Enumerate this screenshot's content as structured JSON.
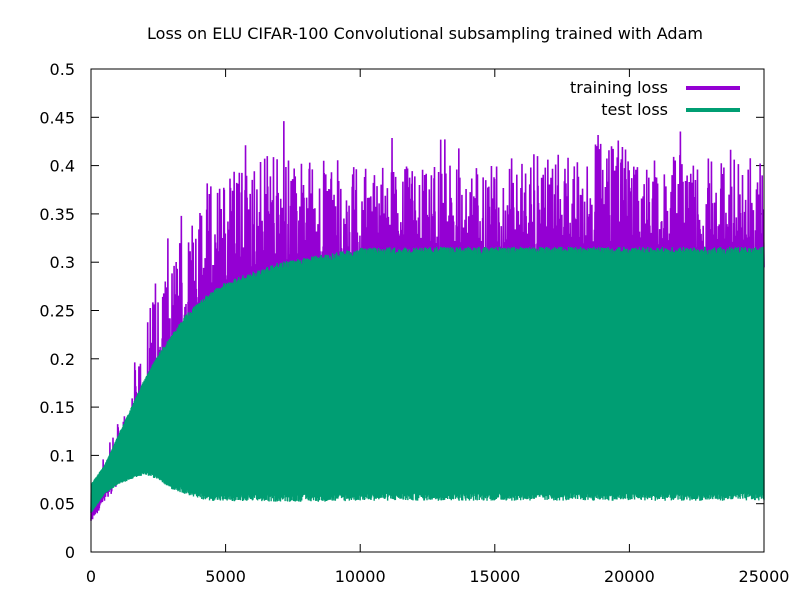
{
  "chart_data": {
    "type": "line",
    "title": "Loss on ELU CIFAR-100 Convolutional subsampling trained with Adam",
    "xlabel": "",
    "ylabel": "",
    "xlim": [
      0,
      25000
    ],
    "ylim": [
      0,
      0.5
    ],
    "x_ticks": [
      "0",
      "5000",
      "10000",
      "15000",
      "20000",
      "25000"
    ],
    "y_ticks": [
      "0",
      "0.05",
      "0.1",
      "0.15",
      "0.2",
      "0.25",
      "0.3",
      "0.35",
      "0.4",
      "0.45",
      "0.5"
    ],
    "legend_position": "top-right",
    "grid": false,
    "series": [
      {
        "name": "training loss",
        "color": "#9400d3",
        "x": [
          0,
          500,
          1000,
          1500,
          2000,
          2500,
          3000,
          3500,
          4000,
          4500,
          5000,
          6000,
          7000,
          8000,
          9000,
          10000,
          12000,
          14000,
          16000,
          18000,
          20000,
          22000,
          25000
        ],
        "low": [
          0.03,
          0.05,
          0.07,
          0.09,
          0.1,
          0.12,
          0.14,
          0.16,
          0.19,
          0.21,
          0.23,
          0.245,
          0.25,
          0.255,
          0.26,
          0.265,
          0.27,
          0.27,
          0.27,
          0.27,
          0.27,
          0.27,
          0.27
        ],
        "high": [
          0.06,
          0.1,
          0.14,
          0.18,
          0.25,
          0.28,
          0.31,
          0.34,
          0.37,
          0.39,
          0.4,
          0.41,
          0.41,
          0.41,
          0.41,
          0.4,
          0.4,
          0.4,
          0.41,
          0.42,
          0.43,
          0.41,
          0.41
        ]
      },
      {
        "name": "test loss",
        "color": "#009e73",
        "x": [
          0,
          500,
          1000,
          1500,
          2000,
          2500,
          3000,
          3500,
          4000,
          4500,
          5000,
          6000,
          7000,
          8000,
          9000,
          10000,
          12000,
          14000,
          16000,
          18000,
          20000,
          22000,
          25000
        ],
        "low": [
          0.04,
          0.06,
          0.07,
          0.075,
          0.08,
          0.075,
          0.065,
          0.06,
          0.055,
          0.053,
          0.052,
          0.052,
          0.052,
          0.052,
          0.052,
          0.053,
          0.053,
          0.053,
          0.053,
          0.053,
          0.053,
          0.053,
          0.053
        ],
        "high": [
          0.07,
          0.09,
          0.12,
          0.15,
          0.18,
          0.205,
          0.225,
          0.245,
          0.26,
          0.27,
          0.28,
          0.29,
          0.3,
          0.305,
          0.31,
          0.315,
          0.316,
          0.316,
          0.316,
          0.316,
          0.316,
          0.316,
          0.316
        ]
      }
    ]
  }
}
